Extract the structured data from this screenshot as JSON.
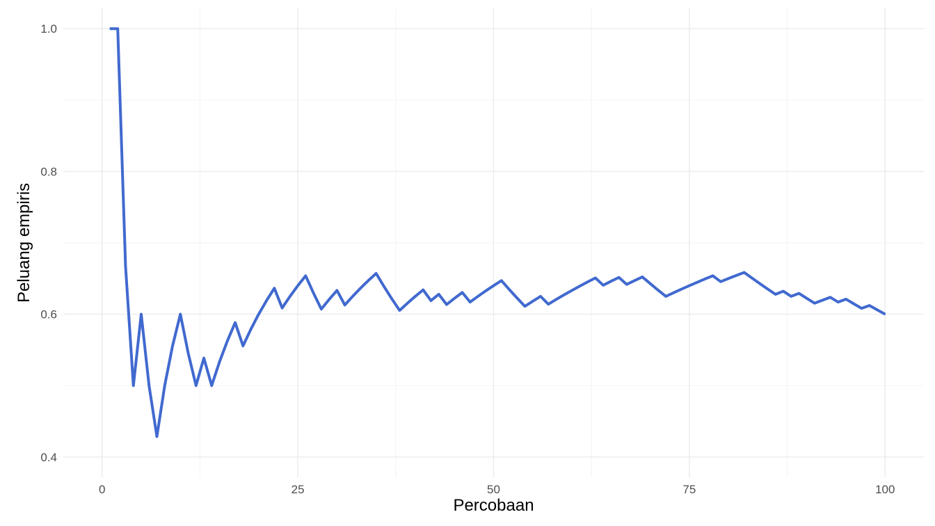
{
  "chart_data": {
    "type": "line",
    "title": "",
    "xlabel": "Percobaan",
    "ylabel": "Peluang empiris",
    "xlim": [
      -4.95,
      104.95
    ],
    "ylim": [
      0.3715,
      1.0285
    ],
    "x_ticks": [
      0,
      25,
      50,
      75,
      100
    ],
    "x_tick_labels": [
      "0",
      "25",
      "50",
      "75",
      "100"
    ],
    "y_ticks": [
      0.4,
      0.6,
      0.8,
      1.0
    ],
    "y_tick_labels": [
      "0.4",
      "0.6",
      "0.8",
      "1.0"
    ],
    "grid": true,
    "legend": "none",
    "line_color": "#4169cf",
    "series": [
      {
        "x": [
          1,
          2,
          3,
          4,
          5,
          6,
          7,
          8,
          9,
          10,
          11,
          12,
          13,
          14,
          15,
          16,
          17,
          18,
          19,
          20,
          21,
          22,
          23,
          24,
          25,
          26,
          27,
          28,
          29,
          30,
          31,
          32,
          33,
          34,
          35,
          36,
          37,
          38,
          39,
          40,
          41,
          42,
          43,
          44,
          45,
          46,
          47,
          48,
          49,
          50,
          51,
          52,
          53,
          54,
          55,
          56,
          57,
          58,
          59,
          60,
          61,
          62,
          63,
          64,
          65,
          66,
          67,
          68,
          69,
          70,
          71,
          72,
          73,
          74,
          75,
          76,
          77,
          78,
          79,
          80,
          81,
          82,
          83,
          84,
          85,
          86,
          87,
          88,
          89,
          90,
          91,
          92,
          93,
          94,
          95,
          96,
          97,
          98,
          99,
          100
        ],
        "values": [
          1.0,
          1.0,
          0.6667,
          0.5,
          0.6,
          0.5,
          0.4286,
          0.5,
          0.5556,
          0.6,
          0.5455,
          0.5,
          0.5385,
          0.5,
          0.5333,
          0.5625,
          0.5882,
          0.5556,
          0.5789,
          0.6,
          0.619,
          0.6364,
          0.6087,
          0.625,
          0.64,
          0.6538,
          0.6296,
          0.6071,
          0.6207,
          0.6333,
          0.6129,
          0.625,
          0.6364,
          0.6471,
          0.6571,
          0.6389,
          0.6216,
          0.6053,
          0.6154,
          0.625,
          0.6341,
          0.619,
          0.6279,
          0.6136,
          0.6222,
          0.6304,
          0.617,
          0.625,
          0.6327,
          0.64,
          0.6471,
          0.6346,
          0.6226,
          0.6111,
          0.6182,
          0.625,
          0.614,
          0.6207,
          0.6271,
          0.6333,
          0.6393,
          0.6452,
          0.6508,
          0.6406,
          0.6462,
          0.6515,
          0.6418,
          0.6471,
          0.6522,
          0.6429,
          0.6338,
          0.625,
          0.6301,
          0.6351,
          0.64,
          0.6447,
          0.6494,
          0.6538,
          0.6456,
          0.65,
          0.6543,
          0.6585,
          0.6506,
          0.6429,
          0.6353,
          0.6279,
          0.6322,
          0.625,
          0.6292,
          0.6222,
          0.6154,
          0.6196,
          0.6237,
          0.617,
          0.6211,
          0.6146,
          0.6082,
          0.6122,
          0.6061,
          0.6
        ]
      }
    ]
  }
}
